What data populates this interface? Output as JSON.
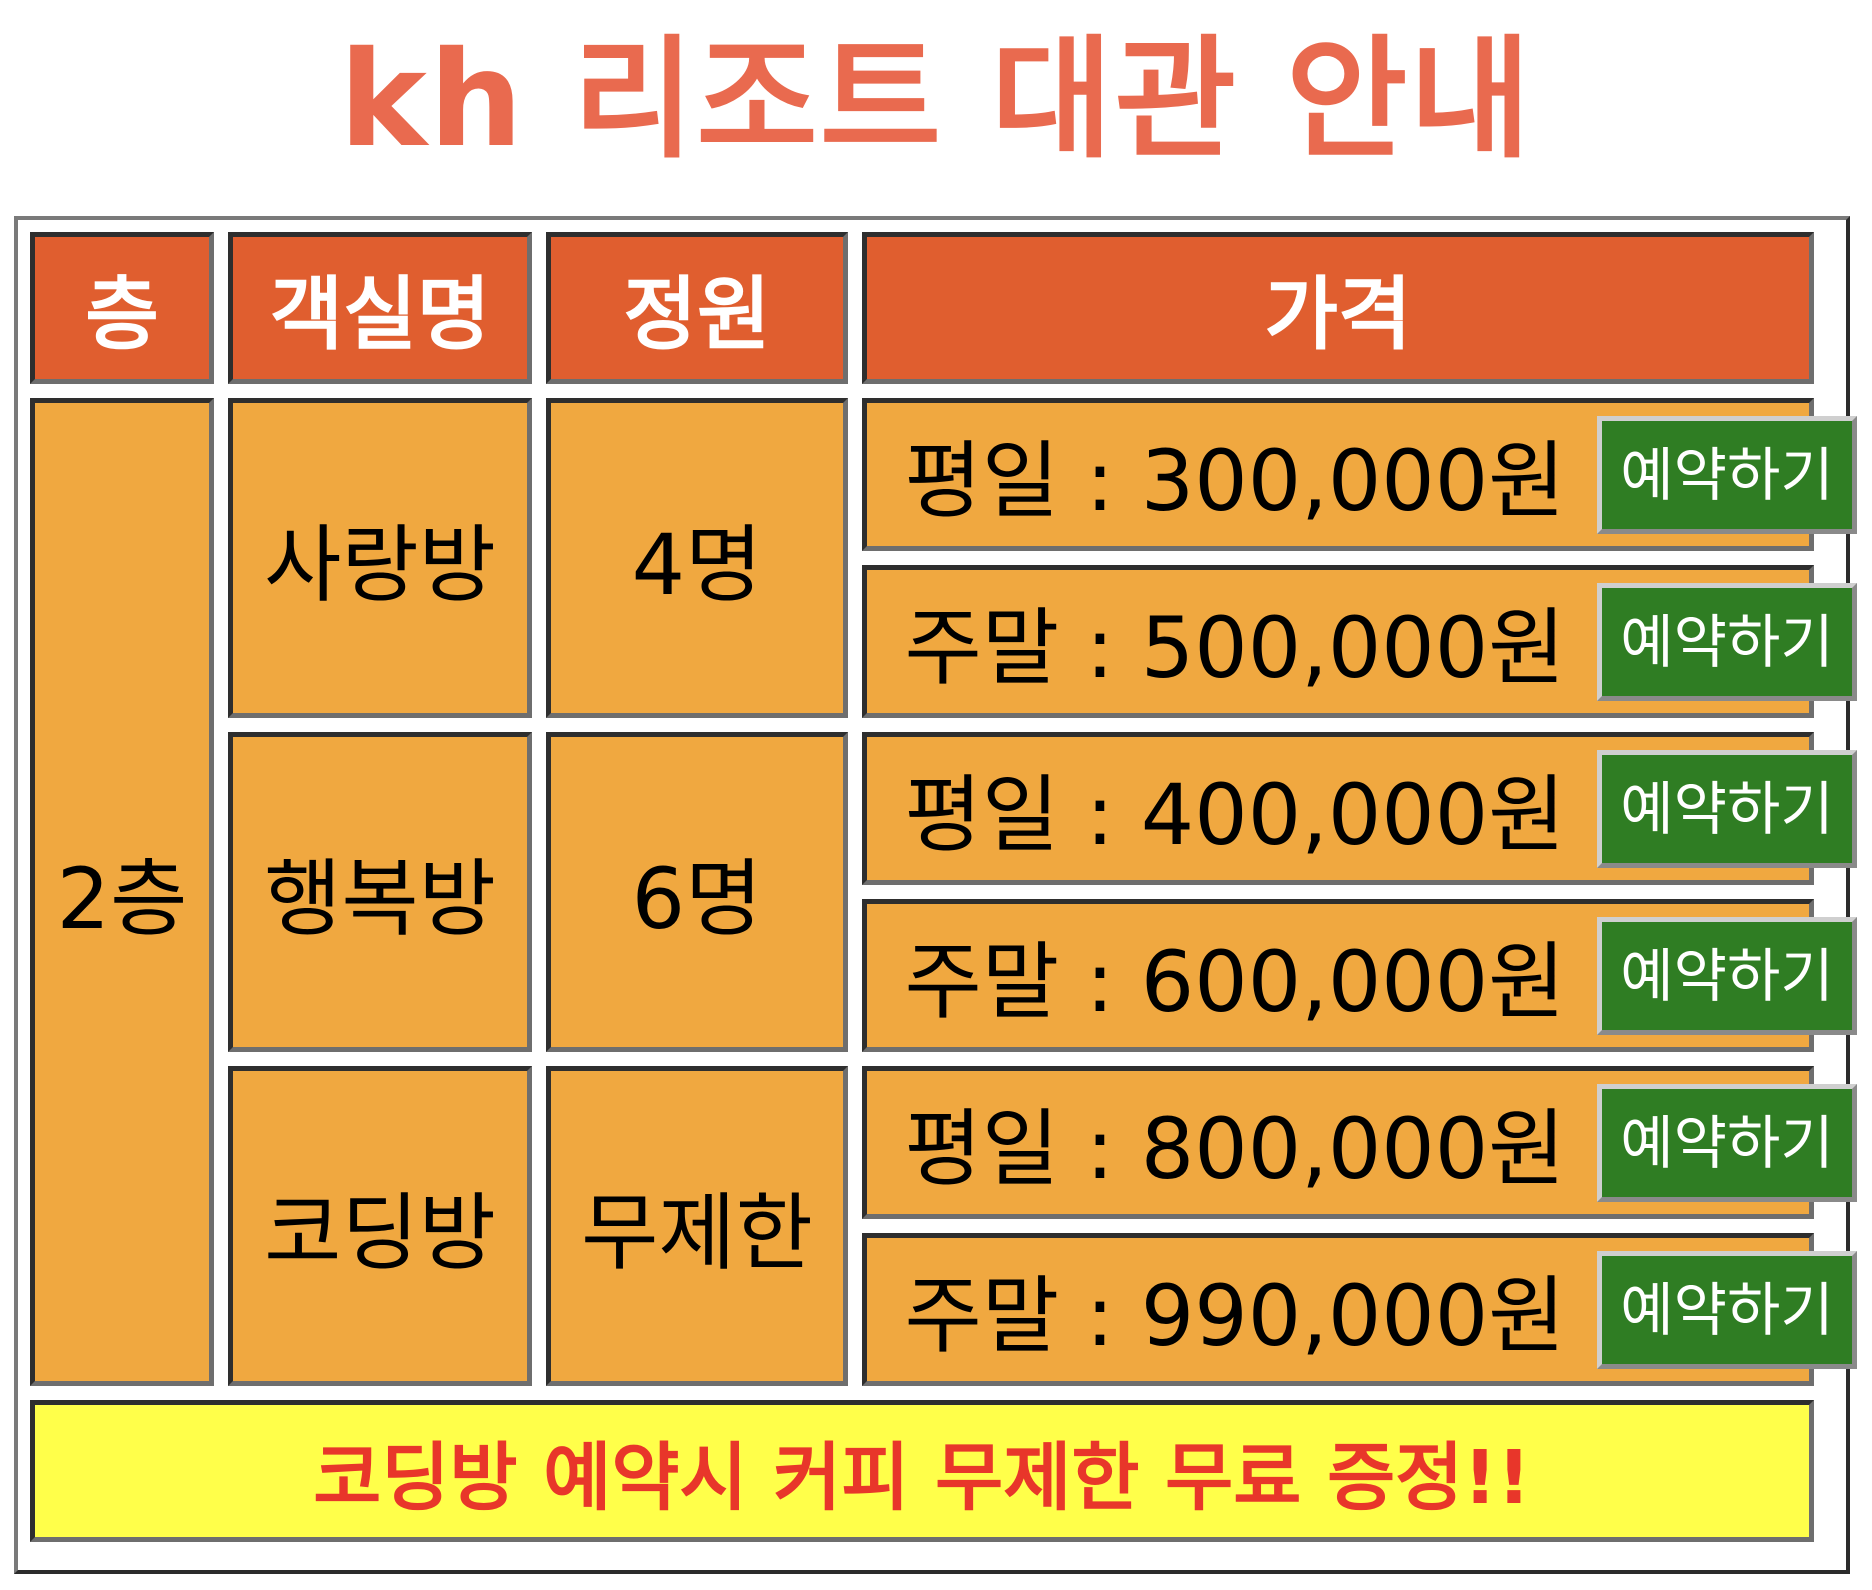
{
  "title": "kh 리조트 대관 안내",
  "header": {
    "floor": "층",
    "room_name": "객실명",
    "capacity": "정원",
    "price": "가격"
  },
  "floor": "2층",
  "rooms": [
    {
      "name": "사랑방",
      "capacity": "4명",
      "prices": [
        {
          "text": "평일 : 300,000원",
          "button": "예약하기"
        },
        {
          "text": "주말 : 500,000원",
          "button": "예약하기"
        }
      ]
    },
    {
      "name": "행복방",
      "capacity": "6명",
      "prices": [
        {
          "text": "평일 : 400,000원",
          "button": "예약하기"
        },
        {
          "text": "주말 : 600,000원",
          "button": "예약하기"
        }
      ]
    },
    {
      "name": "코딩방",
      "capacity": "무제한",
      "prices": [
        {
          "text": "평일 : 800,000원",
          "button": "예약하기"
        },
        {
          "text": "주말 : 990,000원",
          "button": "예약하기"
        }
      ]
    }
  ],
  "notice": "코딩방 예약시 커피 무제한 무료 증정!!",
  "colors": {
    "title": "#e96a4f",
    "header_bg": "#e05e2f",
    "cell_bg": "#f0a840",
    "button_bg": "#2f7d23",
    "notice_bg": "#ffff4a",
    "notice_text": "#e8362a"
  }
}
